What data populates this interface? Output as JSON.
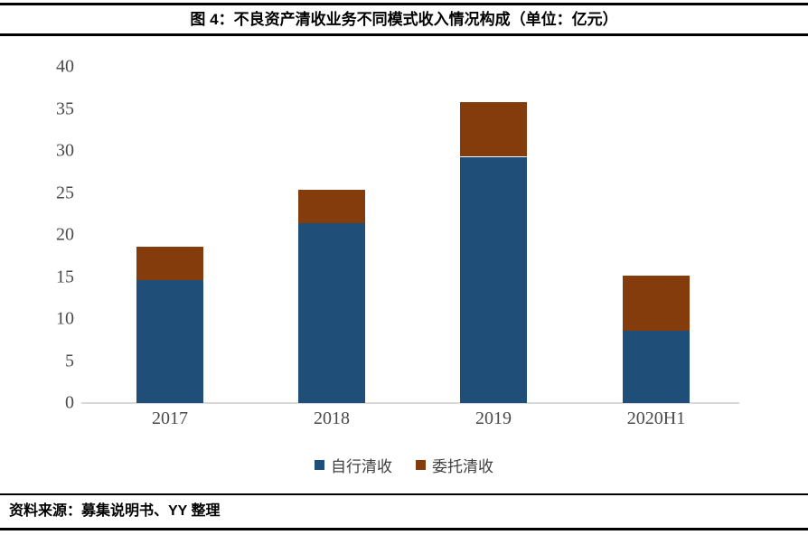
{
  "header": {
    "title": "图 4：不良资产清收业务不同模式收入情况构成（单位：亿元）"
  },
  "chart_data": {
    "type": "bar",
    "stacked": true,
    "title": "不良资产清收业务不同模式收入情况构成",
    "unit": "亿元",
    "categories": [
      "2017",
      "2018",
      "2019",
      "2020H1"
    ],
    "series": [
      {
        "name": "自行清收",
        "color": "#1F4E79",
        "values": [
          14.6,
          21.4,
          29.3,
          8.6
        ]
      },
      {
        "name": "委托清收",
        "color": "#843C0C",
        "values": [
          4.0,
          4.0,
          6.5,
          6.6
        ]
      }
    ],
    "totals": [
      18.6,
      25.4,
      35.8,
      15.2
    ],
    "ylim": [
      0,
      40
    ],
    "ytick_step": 5,
    "yticks": [
      0,
      5,
      10,
      15,
      20,
      25,
      30,
      35,
      40
    ],
    "grid": false,
    "legend_position": "bottom",
    "axis_line_color": "#D9D9D9",
    "tick_label_color": "#4A4A4A"
  },
  "footer": {
    "source": "资料来源：募集说明书、YY 整理"
  }
}
